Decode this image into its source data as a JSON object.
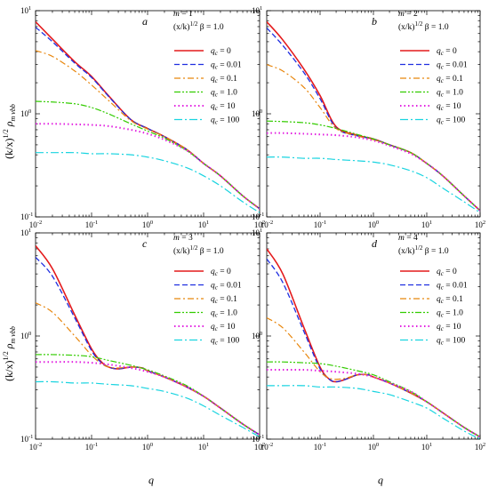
{
  "figure": {
    "ylabel_base": "(k/x)",
    "ylabel_exp": "1/2",
    "ylabel_rho": "ρ",
    "ylabel_sub": "m vbb",
    "xlabel": "q"
  },
  "chart_data": [
    {
      "type": "line",
      "panel": "a",
      "m_text": "m = 1",
      "param_base": "(x/k)",
      "param_exp": "1/2",
      "param_tail": " β = 1.0",
      "xscale": "log",
      "yscale": "log",
      "xlim": [
        0.01,
        100
      ],
      "ylim": [
        0.1,
        10
      ],
      "xticks": [
        {
          "b": "10",
          "e": "-2"
        },
        {
          "b": "10",
          "e": "-1"
        },
        {
          "b": "10",
          "e": "0"
        },
        {
          "b": "10",
          "e": "1"
        },
        {
          "b": "10",
          "e": "2"
        }
      ],
      "yticks": [
        {
          "b": "10",
          "e": "-1"
        },
        {
          "b": "10",
          "e": "0"
        },
        {
          "b": "10",
          "e": "1"
        }
      ],
      "series": [
        {
          "name": "0",
          "x": [
            0.01,
            0.02,
            0.05,
            0.1,
            0.2,
            0.5,
            1,
            2,
            5,
            10,
            20,
            50,
            100
          ],
          "y": [
            7.8,
            5.3,
            3.2,
            2.3,
            1.5,
            0.88,
            0.72,
            0.6,
            0.45,
            0.33,
            0.25,
            0.16,
            0.12
          ]
        },
        {
          "name": "0.01",
          "x": [
            0.01,
            0.02,
            0.05,
            0.1,
            0.2,
            0.5,
            1,
            2,
            5,
            10,
            20,
            50,
            100
          ],
          "y": [
            6.9,
            5.0,
            3.1,
            2.25,
            1.48,
            0.88,
            0.72,
            0.6,
            0.45,
            0.33,
            0.25,
            0.16,
            0.12
          ]
        },
        {
          "name": "0.1",
          "x": [
            0.01,
            0.02,
            0.05,
            0.1,
            0.2,
            0.5,
            1,
            2,
            5,
            10,
            20,
            50,
            100
          ],
          "y": [
            4.1,
            3.6,
            2.6,
            1.9,
            1.35,
            0.86,
            0.71,
            0.6,
            0.45,
            0.33,
            0.25,
            0.16,
            0.12
          ]
        },
        {
          "name": "1.0",
          "x": [
            0.01,
            0.02,
            0.05,
            0.1,
            0.2,
            0.5,
            1,
            2,
            5,
            10,
            20,
            50,
            100
          ],
          "y": [
            1.32,
            1.3,
            1.25,
            1.15,
            1.0,
            0.8,
            0.68,
            0.58,
            0.44,
            0.33,
            0.25,
            0.16,
            0.12
          ]
        },
        {
          "name": "10",
          "x": [
            0.01,
            0.02,
            0.05,
            0.1,
            0.2,
            0.5,
            1,
            2,
            5,
            10,
            20,
            50,
            100
          ],
          "y": [
            0.8,
            0.8,
            0.79,
            0.78,
            0.76,
            0.7,
            0.64,
            0.56,
            0.44,
            0.33,
            0.25,
            0.16,
            0.12
          ]
        },
        {
          "name": "100",
          "x": [
            0.01,
            0.02,
            0.05,
            0.1,
            0.2,
            0.5,
            1,
            2,
            5,
            10,
            20,
            50,
            100
          ],
          "y": [
            0.42,
            0.42,
            0.42,
            0.41,
            0.41,
            0.4,
            0.38,
            0.35,
            0.3,
            0.25,
            0.2,
            0.14,
            0.11
          ]
        }
      ]
    },
    {
      "type": "line",
      "panel": "b",
      "m_text": "m = 2",
      "param_base": "(x/k)",
      "param_exp": "1/2",
      "param_tail": " β = 1.0",
      "xscale": "log",
      "yscale": "log",
      "xlim": [
        0.01,
        100
      ],
      "ylim": [
        0.1,
        10
      ],
      "xticks": [
        {
          "b": "10",
          "e": "-2"
        },
        {
          "b": "10",
          "e": "-1"
        },
        {
          "b": "10",
          "e": "0"
        },
        {
          "b": "10",
          "e": "1"
        },
        {
          "b": "10",
          "e": "2"
        }
      ],
      "yticks": [
        {
          "b": "10",
          "e": "-1"
        },
        {
          "b": "10",
          "e": "0"
        },
        {
          "b": "10",
          "e": "1"
        }
      ],
      "series": [
        {
          "name": "0",
          "x": [
            0.01,
            0.02,
            0.05,
            0.1,
            0.2,
            0.5,
            1,
            2,
            5,
            10,
            20,
            50,
            100
          ],
          "y": [
            7.8,
            5.2,
            2.7,
            1.5,
            0.75,
            0.62,
            0.57,
            0.5,
            0.42,
            0.33,
            0.25,
            0.16,
            0.115
          ]
        },
        {
          "name": "0.01",
          "x": [
            0.01,
            0.02,
            0.05,
            0.1,
            0.2,
            0.5,
            1,
            2,
            5,
            10,
            20,
            50,
            100
          ],
          "y": [
            6.8,
            4.6,
            2.5,
            1.4,
            0.73,
            0.61,
            0.57,
            0.5,
            0.42,
            0.33,
            0.25,
            0.16,
            0.115
          ]
        },
        {
          "name": "0.1",
          "x": [
            0.01,
            0.02,
            0.05,
            0.1,
            0.2,
            0.5,
            1,
            2,
            5,
            10,
            20,
            50,
            100
          ],
          "y": [
            3.0,
            2.6,
            1.8,
            1.15,
            0.72,
            0.61,
            0.56,
            0.5,
            0.42,
            0.33,
            0.25,
            0.16,
            0.115
          ]
        },
        {
          "name": "1.0",
          "x": [
            0.01,
            0.02,
            0.05,
            0.1,
            0.2,
            0.5,
            1,
            2,
            5,
            10,
            20,
            50,
            100
          ],
          "y": [
            0.85,
            0.84,
            0.82,
            0.78,
            0.72,
            0.63,
            0.57,
            0.5,
            0.42,
            0.33,
            0.25,
            0.16,
            0.115
          ]
        },
        {
          "name": "10",
          "x": [
            0.01,
            0.02,
            0.05,
            0.1,
            0.2,
            0.5,
            1,
            2,
            5,
            10,
            20,
            50,
            100
          ],
          "y": [
            0.65,
            0.65,
            0.64,
            0.63,
            0.62,
            0.59,
            0.55,
            0.49,
            0.41,
            0.33,
            0.25,
            0.16,
            0.115
          ]
        },
        {
          "name": "100",
          "x": [
            0.01,
            0.02,
            0.05,
            0.1,
            0.2,
            0.5,
            1,
            2,
            5,
            10,
            20,
            50,
            100
          ],
          "y": [
            0.38,
            0.38,
            0.37,
            0.37,
            0.36,
            0.35,
            0.34,
            0.32,
            0.28,
            0.24,
            0.19,
            0.14,
            0.11
          ]
        }
      ]
    },
    {
      "type": "line",
      "panel": "c",
      "m_text": "m = 3",
      "param_base": "(x/k)",
      "param_exp": "1/2",
      "param_tail": " β = 1.0",
      "xscale": "log",
      "yscale": "log",
      "xlim": [
        0.01,
        100
      ],
      "ylim": [
        0.1,
        10
      ],
      "xticks": [
        {
          "b": "10",
          "e": "-2"
        },
        {
          "b": "10",
          "e": "-1"
        },
        {
          "b": "10",
          "e": "0"
        },
        {
          "b": "10",
          "e": "1"
        },
        {
          "b": "10",
          "e": "2"
        }
      ],
      "yticks": [
        {
          "b": "10",
          "e": "-1"
        },
        {
          "b": "10",
          "e": "0"
        },
        {
          "b": "10",
          "e": "1"
        }
      ],
      "series": [
        {
          "name": "0",
          "x": [
            0.01,
            0.02,
            0.05,
            0.1,
            0.15,
            0.2,
            0.3,
            0.5,
            0.8,
            1,
            2,
            5,
            10,
            20,
            50,
            100
          ],
          "y": [
            7.5,
            4.5,
            1.6,
            0.75,
            0.56,
            0.5,
            0.48,
            0.5,
            0.49,
            0.46,
            0.4,
            0.32,
            0.26,
            0.2,
            0.14,
            0.11
          ]
        },
        {
          "name": "0.01",
          "x": [
            0.01,
            0.02,
            0.05,
            0.1,
            0.15,
            0.2,
            0.3,
            0.5,
            0.8,
            1,
            2,
            5,
            10,
            20,
            50,
            100
          ],
          "y": [
            5.8,
            3.8,
            1.5,
            0.72,
            0.55,
            0.5,
            0.48,
            0.5,
            0.49,
            0.46,
            0.4,
            0.32,
            0.26,
            0.2,
            0.14,
            0.11
          ]
        },
        {
          "name": "0.1",
          "x": [
            0.01,
            0.02,
            0.05,
            0.1,
            0.15,
            0.2,
            0.3,
            0.5,
            0.8,
            1,
            2,
            5,
            10,
            20,
            50,
            100
          ],
          "y": [
            2.1,
            1.7,
            1.0,
            0.65,
            0.54,
            0.5,
            0.49,
            0.5,
            0.49,
            0.46,
            0.4,
            0.32,
            0.26,
            0.2,
            0.14,
            0.11
          ]
        },
        {
          "name": "1.0",
          "x": [
            0.01,
            0.02,
            0.05,
            0.1,
            0.2,
            0.5,
            1,
            2,
            5,
            10,
            20,
            50,
            100
          ],
          "y": [
            0.66,
            0.66,
            0.65,
            0.63,
            0.58,
            0.52,
            0.47,
            0.41,
            0.33,
            0.26,
            0.2,
            0.14,
            0.11
          ]
        },
        {
          "name": "10",
          "x": [
            0.01,
            0.02,
            0.05,
            0.1,
            0.2,
            0.5,
            1,
            2,
            5,
            10,
            20,
            50,
            100
          ],
          "y": [
            0.56,
            0.56,
            0.56,
            0.55,
            0.53,
            0.49,
            0.45,
            0.4,
            0.32,
            0.26,
            0.2,
            0.14,
            0.11
          ]
        },
        {
          "name": "100",
          "x": [
            0.01,
            0.02,
            0.05,
            0.1,
            0.2,
            0.5,
            1,
            2,
            5,
            10,
            20,
            50,
            100
          ],
          "y": [
            0.36,
            0.36,
            0.35,
            0.35,
            0.34,
            0.33,
            0.31,
            0.29,
            0.25,
            0.21,
            0.17,
            0.13,
            0.105
          ]
        }
      ]
    },
    {
      "type": "line",
      "panel": "d",
      "m_text": "m = 4",
      "param_base": "(x/k)",
      "param_exp": "1/2",
      "param_tail": " β = 1.0",
      "xscale": "log",
      "yscale": "log",
      "xlim": [
        0.01,
        100
      ],
      "ylim": [
        0.1,
        10
      ],
      "xticks": [
        {
          "b": "10",
          "e": "-2"
        },
        {
          "b": "10",
          "e": "-1"
        },
        {
          "b": "10",
          "e": "0"
        },
        {
          "b": "10",
          "e": "1"
        },
        {
          "b": "10",
          "e": "2"
        }
      ],
      "yticks": [
        {
          "b": "10",
          "e": "-1"
        },
        {
          "b": "10",
          "e": "0"
        },
        {
          "b": "10",
          "e": "1"
        }
      ],
      "series": [
        {
          "name": "0",
          "x": [
            0.01,
            0.02,
            0.05,
            0.1,
            0.15,
            0.2,
            0.3,
            0.5,
            0.8,
            1,
            2,
            5,
            10,
            20,
            50,
            100
          ],
          "y": [
            7.0,
            4.0,
            1.2,
            0.5,
            0.38,
            0.36,
            0.38,
            0.42,
            0.42,
            0.4,
            0.35,
            0.28,
            0.23,
            0.18,
            0.13,
            0.105
          ]
        },
        {
          "name": "0.01",
          "x": [
            0.01,
            0.02,
            0.05,
            0.1,
            0.15,
            0.2,
            0.3,
            0.5,
            0.8,
            1,
            2,
            5,
            10,
            20,
            50,
            100
          ],
          "y": [
            5.6,
            3.3,
            1.1,
            0.48,
            0.38,
            0.36,
            0.38,
            0.42,
            0.42,
            0.4,
            0.35,
            0.28,
            0.23,
            0.18,
            0.13,
            0.105
          ]
        },
        {
          "name": "0.1",
          "x": [
            0.01,
            0.02,
            0.05,
            0.1,
            0.15,
            0.2,
            0.3,
            0.5,
            0.8,
            1,
            2,
            5,
            10,
            20,
            50,
            100
          ],
          "y": [
            1.5,
            1.2,
            0.7,
            0.45,
            0.39,
            0.38,
            0.39,
            0.42,
            0.42,
            0.4,
            0.35,
            0.28,
            0.23,
            0.18,
            0.13,
            0.105
          ]
        },
        {
          "name": "1.0",
          "x": [
            0.01,
            0.02,
            0.05,
            0.1,
            0.2,
            0.5,
            1,
            2,
            5,
            10,
            20,
            50,
            100
          ],
          "y": [
            0.56,
            0.56,
            0.55,
            0.54,
            0.51,
            0.46,
            0.42,
            0.36,
            0.29,
            0.23,
            0.18,
            0.13,
            0.105
          ]
        },
        {
          "name": "10",
          "x": [
            0.01,
            0.02,
            0.05,
            0.1,
            0.2,
            0.5,
            1,
            2,
            5,
            10,
            20,
            50,
            100
          ],
          "y": [
            0.47,
            0.47,
            0.47,
            0.46,
            0.45,
            0.43,
            0.4,
            0.35,
            0.29,
            0.23,
            0.18,
            0.13,
            0.105
          ]
        },
        {
          "name": "100",
          "x": [
            0.01,
            0.02,
            0.05,
            0.1,
            0.2,
            0.5,
            1,
            2,
            5,
            10,
            20,
            50,
            100
          ],
          "y": [
            0.33,
            0.33,
            0.33,
            0.32,
            0.32,
            0.31,
            0.29,
            0.27,
            0.23,
            0.2,
            0.16,
            0.12,
            0.1
          ]
        }
      ]
    }
  ],
  "series_styles": [
    {
      "color": "#e41a1c",
      "dash": "",
      "width": 1.6
    },
    {
      "color": "#1f2ee0",
      "dash": "6,3",
      "width": 1.3
    },
    {
      "color": "#e8860c",
      "dash": "7,3,2,3",
      "width": 1.2
    },
    {
      "color": "#33cc00",
      "dash": "7,2,2,2,2,2",
      "width": 1.2
    },
    {
      "color": "#e21fe0",
      "dash": "1.5,3",
      "width": 2.0
    },
    {
      "color": "#19d4e0",
      "dash": "9,3,2,3",
      "width": 1.2
    }
  ]
}
